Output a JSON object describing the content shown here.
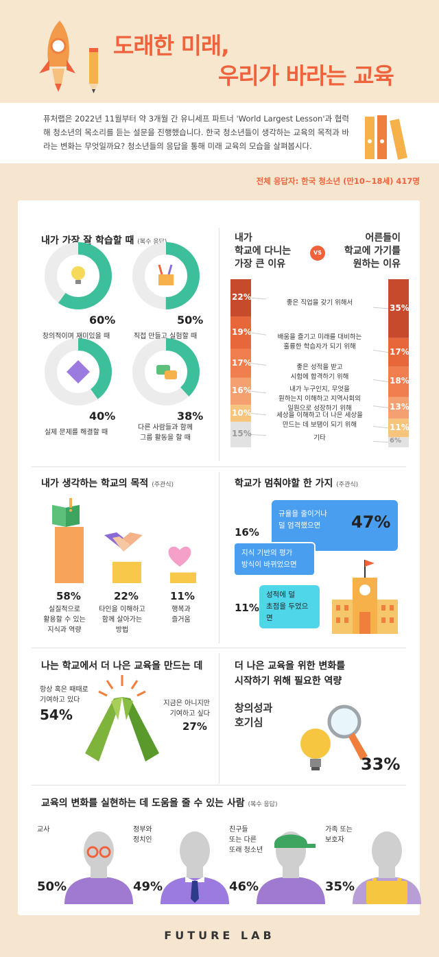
{
  "header": {
    "title_line1": "도래한 미래,",
    "title_line2": "우리가 바라는 교육"
  },
  "intro": {
    "text": "퓨처랩은 2022년 11월부터 약 3개월 간 유니세프 파트너 'World Largest Lesson'과 협력해 청소년의 목소리를 듣는 설문을 진행했습니다. 한국 청소년들이 생각하는 교육의 목적과 바라는 변화는 무엇일까요? 청소년들의 응답을 통해 미래 교육의 모습을 살펴봅시다."
  },
  "respondents": "전체 응답자: 한국 청소년 (만10~18세) 417명",
  "colors": {
    "accent": "#f0623c",
    "teal": "#3dbf9b",
    "blue": "#4a9ef0",
    "cyan": "#4fd6e8",
    "bar_colors": [
      "#c84a2c",
      "#e8673a",
      "#f07e4e",
      "#f4a070",
      "#f7c47e",
      "#e2e2e2"
    ]
  },
  "learn_best": {
    "title": "내가 가장 잘 학습할 때",
    "note": "(복수 응답)",
    "chart_data": {
      "type": "pie",
      "categories": [
        "창의적이며 재미있을 때",
        "직접 만들고 실험할 때",
        "실제 문제를 해결할 때",
        "다른 사람들과 함께 그룹 활동을 할 때"
      ],
      "values": [
        60,
        50,
        40,
        38
      ]
    },
    "items": [
      {
        "label": "창의적이며 재미있을 때",
        "pct": "60%",
        "icon": "lightbulb-icon"
      },
      {
        "label": "직접 만들고 실험할 때",
        "pct": "50%",
        "icon": "pencil-cup-icon"
      },
      {
        "label": "실제 문제를 해결할 때",
        "pct": "40%",
        "icon": "puzzle-icon"
      },
      {
        "label_line1": "다른 사람들과 함께",
        "label_line2": "그룹 활동을 할 때",
        "pct": "38%",
        "icon": "chat-bubbles-icon"
      }
    ]
  },
  "reasons": {
    "left_title": [
      "내가",
      "학교에 다니는",
      "가장 큰 이유"
    ],
    "vs": "VS",
    "right_title": [
      "어른들이",
      "학교에 가기를",
      "원하는 이유"
    ],
    "chart_data": {
      "type": "bar",
      "categories": [
        "좋은 직업을 갖기 위해서",
        "배움을 즐기고 미래를 대비하는 훌륭한 학습자가 되기 위해",
        "좋은 성적을 받고 시험에 합격하기 위해",
        "내가 누구인지, 무엇을 원하는지 이해하고 지역사회의 일원으로 성장하기 위해",
        "세상을 이해하고 더 나은 세상을 만드는 데 보탬이 되기 위해",
        "기타"
      ],
      "series": [
        {
          "values": [
            22,
            19,
            17,
            16,
            10,
            15
          ]
        },
        {
          "values": [
            35,
            17,
            18,
            13,
            11,
            6
          ]
        }
      ]
    },
    "items": [
      {
        "label": [
          "좋은 직업을 갖기 위해서"
        ],
        "left": "22%",
        "right": "35%"
      },
      {
        "label": [
          "배움을 즐기고 미래를 대비하는",
          "훌륭한 학습자가 되기 위해"
        ],
        "left": "19%",
        "right": "17%"
      },
      {
        "label": [
          "좋은 성적을 받고",
          "시험에 합격하기 위해"
        ],
        "left": "17%",
        "right": "18%"
      },
      {
        "label": [
          "내가 누구인지, 무엇을",
          "원하는지 이해하고 지역사회의",
          "일원으로 성장하기 위해"
        ],
        "left": "16%",
        "right": "13%"
      },
      {
        "label": [
          "세상을 이해하고 더 나은 세상을",
          "만드는 데 보탬이 되기 위해"
        ],
        "left": "10%",
        "right": "11%"
      },
      {
        "label": [
          "기타"
        ],
        "left": "15%",
        "right": "6%"
      }
    ]
  },
  "school_purpose": {
    "title": "내가 생각하는 학교의 목적",
    "note": "(주관식)",
    "chart_data": {
      "type": "bar",
      "categories": [
        "실질적으로 활용할 수 있는 지식과 역량",
        "타인을 이해하고 함께 살아가는 방법",
        "행복과 즐거움"
      ],
      "values": [
        58,
        22,
        11
      ]
    },
    "items": [
      {
        "pct": "58%",
        "label": [
          "실질적으로",
          "활용할 수 있는",
          "지식과 역량"
        ],
        "icon": "book-icon"
      },
      {
        "pct": "22%",
        "label": [
          "타인을 이해하고",
          "함께 살아가는",
          "방법"
        ],
        "icon": "handshake-icon"
      },
      {
        "pct": "11%",
        "label": [
          "행복과",
          "즐거움"
        ],
        "icon": "heart-icon"
      }
    ]
  },
  "school_stop": {
    "title": "학교가 멈춰야할 한 가지",
    "note": "(주관식)",
    "chart_data": {
      "type": "bar",
      "categories": [
        "규율을 줄이거나 덜 엄격했으면",
        "지식 기반의 평가 방식이 바뀌었으면",
        "성적에 덜 초점을 두었으면"
      ],
      "values": [
        47,
        16,
        11
      ]
    },
    "items": [
      {
        "label": [
          "규율을 줄이거나",
          "덜 엄격했으면"
        ],
        "pct": "47%"
      },
      {
        "label": [
          "지식 기반의 평가",
          "방식이 바뀌었으면"
        ],
        "pct": "16%"
      },
      {
        "label": [
          "성적에 덜",
          "초점을 두었으면"
        ],
        "pct": "11%"
      }
    ]
  },
  "contribute": {
    "title": "나는 학교에서 더 나은 교육을 만드는 데",
    "chart_data": {
      "type": "bar",
      "categories": [
        "항상 혹은 때때로 기여하고 있다",
        "지금은 아니지만 기여하고 싶다"
      ],
      "values": [
        54,
        27
      ]
    },
    "left_label": [
      "항상 혹은 때때로",
      "기여하고 있다"
    ],
    "left_pct": "54%",
    "right_label": [
      "지금은 아니지만",
      "기여하고 싶다"
    ],
    "right_pct": "27%"
  },
  "competency": {
    "title_line1": "더 나은 교육을 위한 변화를",
    "title_line2": "시작하기 위해 필요한 역량",
    "label_line1": "창의성과",
    "label_line2": "호기심",
    "pct": "33%"
  },
  "helpers": {
    "title": "교육의 변화를 실현하는 데 도움을 줄 수 있는 사람",
    "note": "(복수 응답)",
    "chart_data": {
      "type": "bar",
      "categories": [
        "교사",
        "정부와 정치인",
        "친구들 또는 다른 또래 청소년",
        "가족 또는 보호자"
      ],
      "values": [
        50,
        49,
        46,
        35
      ]
    },
    "items": [
      {
        "label": [
          "교사"
        ],
        "pct": "50%",
        "icon": "teacher-icon"
      },
      {
        "label": [
          "정부와",
          "정치인"
        ],
        "pct": "49%",
        "icon": "politician-icon"
      },
      {
        "label": [
          "친구들",
          "또는 다른",
          "또래 청소년"
        ],
        "pct": "46%",
        "icon": "peer-icon"
      },
      {
        "label": [
          "가족 또는",
          "보호자"
        ],
        "pct": "35%",
        "icon": "guardian-icon"
      }
    ]
  },
  "footer": "FUTURE LAB"
}
